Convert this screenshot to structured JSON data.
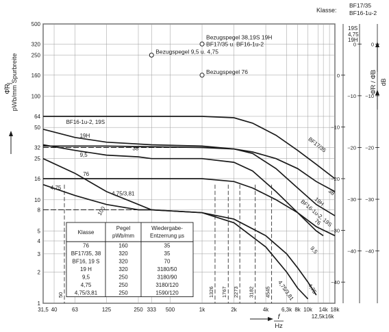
{
  "chart_data": {
    "type": "line",
    "y_axis_label": "Φ̂R",
    "y_axis_unit": "pWb/mm Spurbreite",
    "x_axis_label": "f",
    "x_axis_unit": "Hz",
    "klasse_label": "Klasse:",
    "klasse_columns": [
      [
        "BF17/35",
        "BF16-1u-2"
      ],
      [
        "19S",
        "4,75"
      ],
      [
        "19H"
      ]
    ],
    "db_axis_label": "Φ̂R / Φ̂B",
    "db_axis_unit": "dB",
    "x_scale": "log",
    "y_scale": "log",
    "xlim": [
      31.5,
      18000
    ],
    "ylim": [
      1,
      500
    ],
    "y_ticks": [
      {
        "v": 1,
        "t": "1"
      },
      {
        "v": 2,
        "t": "2"
      },
      {
        "v": 3,
        "t": "3"
      },
      {
        "v": 4,
        "t": "4"
      },
      {
        "v": 5,
        "t": "5"
      },
      {
        "v": 8,
        "t": "8"
      },
      {
        "v": 10,
        "t": "10"
      },
      {
        "v": 16,
        "t": "16"
      },
      {
        "v": 25,
        "t": "25"
      },
      {
        "v": 32,
        "t": "32"
      },
      {
        "v": 50,
        "t": "50"
      },
      {
        "v": 64,
        "t": "64"
      },
      {
        "v": 100,
        "t": "100"
      },
      {
        "v": 160,
        "t": "160"
      },
      {
        "v": 250,
        "t": "250"
      },
      {
        "v": 320,
        "t": "320"
      },
      {
        "v": 500,
        "t": "500"
      }
    ],
    "x_ticks_row1": [
      {
        "f": 31.5,
        "t": "31,5"
      },
      {
        "f": 40,
        "t": "40"
      },
      {
        "f": 63,
        "t": "63"
      },
      {
        "f": 125,
        "t": "125"
      },
      {
        "f": 250,
        "t": "250"
      },
      {
        "f": 333,
        "t": "333"
      },
      {
        "f": 500,
        "t": "500"
      },
      {
        "f": 1000,
        "t": "1k"
      },
      {
        "f": 2000,
        "t": "2k"
      },
      {
        "f": 4000,
        "t": "4k"
      },
      {
        "f": 6300,
        "t": "6,3k"
      },
      {
        "f": 8000,
        "t": "8k"
      },
      {
        "f": 10000,
        "t": "10k"
      },
      {
        "f": 14000,
        "t": "14k"
      },
      {
        "f": 18000,
        "t": "18k"
      }
    ],
    "x_ticks_row2": [
      {
        "f": 12500,
        "t": "12,5k"
      },
      {
        "f": 16000,
        "t": "16k"
      }
    ],
    "turnover_markers": [
      {
        "f": 50,
        "t": "50"
      },
      {
        "f": 1326,
        "t": "1326"
      },
      {
        "f": 1767,
        "t": "1767"
      },
      {
        "f": 2273,
        "t": "2273"
      },
      {
        "f": 3182,
        "t": "3182"
      },
      {
        "f": 4545,
        "t": "4545"
      }
    ],
    "reference_points": [
      {
        "label": "Bezugspegel 38,19S 19H BF17/35 u. BF16-1u-2",
        "lines": [
          "Bezugspegel 38,19S 19H",
          "BF17/35 u. BF16-1u-2"
        ],
        "f": 1000,
        "y": 320
      },
      {
        "label": "Bezugspegel 9,5 u. 4,75",
        "lines": [
          "Bezugspegel 9,5 u. 4,75"
        ],
        "f": 333,
        "y": 250
      },
      {
        "label": "Bezugspegel 76",
        "lines": [
          "Bezugspegel 76"
        ],
        "f": 1000,
        "y": 160
      }
    ],
    "db_scales": [
      {
        "pos": "76",
        "ticks": [
          {
            "db": 0,
            "t": "0"
          },
          {
            "db": -10,
            "t": "−10"
          },
          {
            "db": -20,
            "t": "−20"
          },
          {
            "db": -30,
            "t": "−30"
          },
          {
            "db": -40,
            "t": "−40"
          }
        ]
      },
      {
        "pos": "19S",
        "ticks": [
          {
            "db": 0,
            "t": "0"
          },
          {
            "db": -10,
            "t": "−10"
          },
          {
            "db": -20,
            "t": "−20"
          },
          {
            "db": -30,
            "t": "−30"
          },
          {
            "db": -40,
            "t": "−40"
          }
        ]
      },
      {
        "pos": "BF",
        "ticks": [
          {
            "db": 0,
            "t": "0"
          },
          {
            "db": -10,
            "t": "−10"
          },
          {
            "db": -20,
            "t": "−20"
          },
          {
            "db": -30,
            "t": "−30"
          },
          {
            "db": -40,
            "t": "−40"
          }
        ]
      }
    ],
    "series": [
      {
        "name": "BF16-1u-2, 19S",
        "points": [
          [
            31.5,
            64
          ],
          [
            100,
            64
          ],
          [
            1000,
            64
          ],
          [
            2000,
            62
          ],
          [
            3000,
            55
          ],
          [
            5000,
            42
          ],
          [
            8000,
            30
          ],
          [
            12000,
            22
          ],
          [
            18000,
            16
          ]
        ]
      },
      {
        "name": "19H",
        "points": [
          [
            31.5,
            48
          ],
          [
            63,
            40
          ],
          [
            125,
            36
          ],
          [
            333,
            34
          ],
          [
            1000,
            33
          ],
          [
            2000,
            31
          ],
          [
            3000,
            28
          ],
          [
            5000,
            20
          ],
          [
            8000,
            13
          ],
          [
            12000,
            9
          ],
          [
            18000,
            7
          ]
        ]
      },
      {
        "name": "38",
        "points": [
          [
            31.5,
            33
          ],
          [
            125,
            33
          ],
          [
            1000,
            32
          ],
          [
            2000,
            31
          ],
          [
            3000,
            29
          ],
          [
            5000,
            25
          ],
          [
            8000,
            20
          ],
          [
            12000,
            15
          ],
          [
            18000,
            12
          ]
        ]
      },
      {
        "name": "9,5",
        "points": [
          [
            31.5,
            34
          ],
          [
            63,
            30
          ],
          [
            125,
            27
          ],
          [
            250,
            26
          ],
          [
            333,
            25
          ],
          [
            1000,
            25
          ],
          [
            2000,
            23
          ],
          [
            3000,
            19
          ],
          [
            5000,
            12
          ],
          [
            8000,
            7.5
          ],
          [
            12000,
            5
          ],
          [
            14000,
            4.5
          ]
        ]
      },
      {
        "name": "76",
        "points": [
          [
            31.5,
            16
          ],
          [
            125,
            16
          ],
          [
            1000,
            16
          ],
          [
            2000,
            15
          ],
          [
            3000,
            13
          ],
          [
            5000,
            10
          ],
          [
            8000,
            7.5
          ],
          [
            12000,
            5.5
          ],
          [
            18000,
            4.5
          ]
        ]
      },
      {
        "name": "4,75",
        "points": [
          [
            31.5,
            25
          ],
          [
            63,
            18
          ],
          [
            125,
            12
          ],
          [
            250,
            9
          ],
          [
            333,
            8
          ],
          [
            1000,
            7.5
          ],
          [
            2000,
            6
          ],
          [
            4000,
            3.5
          ],
          [
            6300,
            2
          ],
          [
            8000,
            1.4
          ],
          [
            10000,
            1.1
          ]
        ]
      },
      {
        "name": "4,75/3,81",
        "points": [
          [
            31.5,
            14
          ],
          [
            63,
            11
          ],
          [
            125,
            9
          ],
          [
            250,
            8
          ],
          [
            333,
            8
          ],
          [
            1000,
            7.5
          ],
          [
            2000,
            6.5
          ],
          [
            4000,
            4.5
          ],
          [
            6300,
            3
          ],
          [
            8000,
            2.2
          ],
          [
            10000,
            1.6
          ],
          [
            12000,
            1.2
          ]
        ]
      }
    ],
    "curve_labels": [
      {
        "t": "BF16-1u-2, 19S",
        "f": 52,
        "y": 54,
        "rot": 0
      },
      {
        "t": "19H",
        "f": 70,
        "y": 40,
        "rot": 0
      },
      {
        "t": "38",
        "f": 220,
        "y": 30,
        "rot": 0
      },
      {
        "t": "9,5",
        "f": 70,
        "y": 26,
        "rot": 0
      },
      {
        "t": "76",
        "f": 75,
        "y": 17,
        "rot": 0
      },
      {
        "t": "4,75/3,81",
        "f": 140,
        "y": 11,
        "rot": 0
      },
      {
        "t": "4,75",
        "f": 37,
        "y": 12.5,
        "rot": 0
      },
      {
        "t": "100",
        "f": 110,
        "y": 7,
        "rot": -60
      },
      {
        "t": "BF17/35",
        "f": 10000,
        "y": 38,
        "rot": 38
      },
      {
        "t": "38",
        "f": 15500,
        "y": 12,
        "rot": 40
      },
      {
        "t": "19H",
        "f": 11500,
        "y": 10,
        "rot": 40
      },
      {
        "t": "BF16-1u-2, 19S",
        "f": 8500,
        "y": 9.5,
        "rot": 40
      },
      {
        "t": "76",
        "f": 11500,
        "y": 6.2,
        "rot": 42
      },
      {
        "t": "9,5",
        "f": 10500,
        "y": 3.4,
        "rot": 50
      },
      {
        "t": "4,75/3,81",
        "f": 5200,
        "y": 1.6,
        "rot": 55
      },
      {
        "t": "4,75",
        "f": 10000,
        "y": 1.5,
        "rot": 58
      }
    ],
    "table": {
      "headers": [
        "Klasse",
        "Pegel\npWb/mm",
        "Wiedergabe-\nEntzerrung µs"
      ],
      "rows": [
        [
          "76",
          "160",
          "35"
        ],
        [
          "BF17/35, 38",
          "320",
          "35"
        ],
        [
          "BF16, 19 S",
          "320",
          "70"
        ],
        [
          "19 H",
          "320",
          "3180/50"
        ],
        [
          "9,5",
          "250",
          "3180/90"
        ],
        [
          "4,75",
          "250",
          "3180/120"
        ],
        [
          "4,75/3,81",
          "250",
          "1590/120"
        ]
      ]
    }
  }
}
